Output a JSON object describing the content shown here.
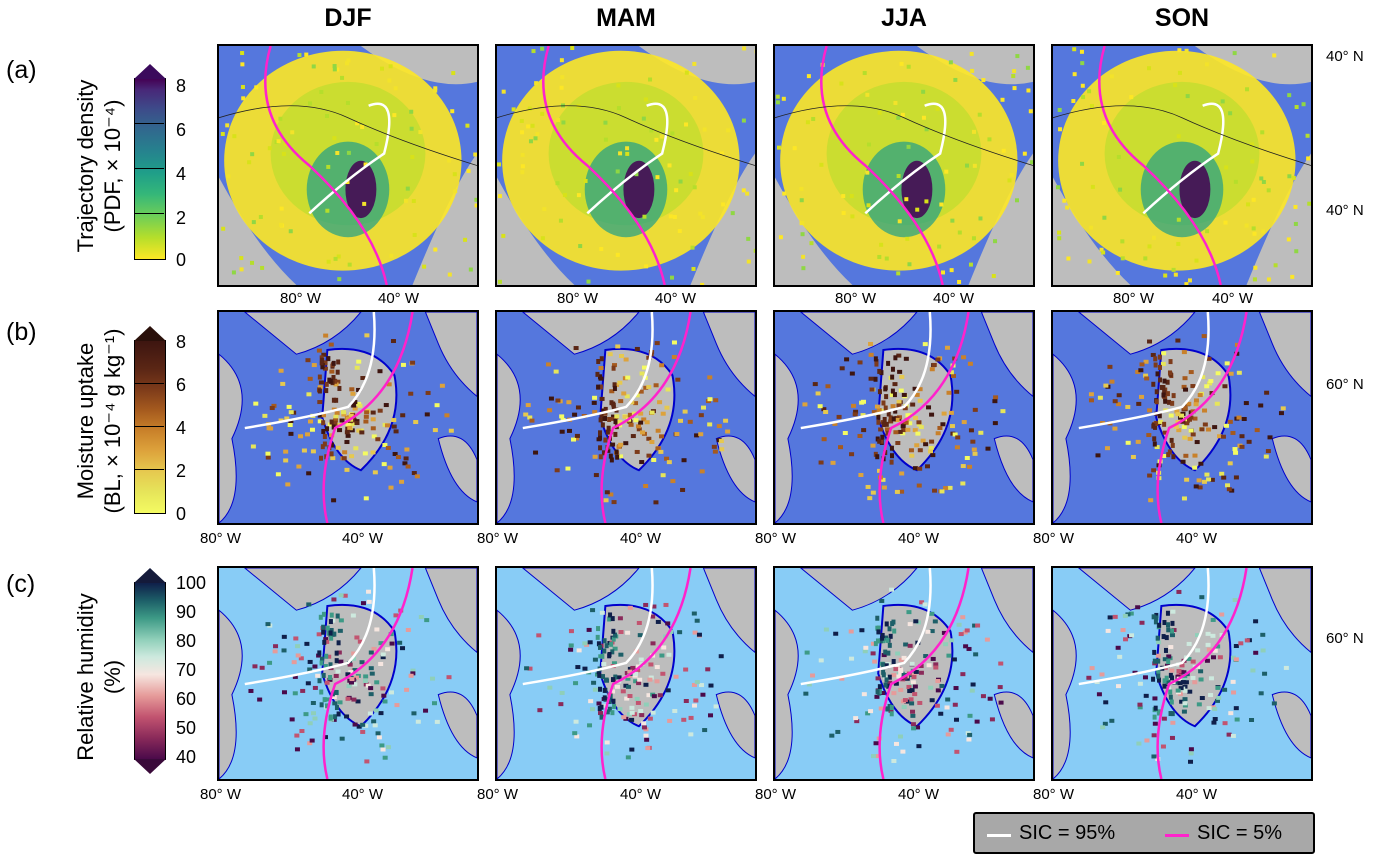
{
  "seasons": [
    "DJF",
    "MAM",
    "JJA",
    "SON"
  ],
  "rows": [
    {
      "label": "(a)",
      "title_line1": "Trajectory density",
      "title_line2": "(PDF, × 10⁻⁴)",
      "ticks": [
        "8",
        "6",
        "4",
        "2",
        "0"
      ]
    },
    {
      "label": "(b)",
      "title_line1": "Moisture uptake",
      "title_line2": "(BL, × 10⁻⁴ g kg⁻¹)",
      "ticks": [
        "8",
        "6",
        "4",
        "2",
        "0"
      ]
    },
    {
      "label": "(c)",
      "title_line1": "Relative humidity",
      "title_line2": "(%)",
      "ticks": [
        "100",
        "90",
        "80",
        "70",
        "60",
        "50",
        "40"
      ]
    }
  ],
  "lon_labels": {
    "row_a": [
      "80° W",
      "40° W"
    ],
    "row_bc": [
      "80° W",
      "40° W"
    ]
  },
  "lat_labels": {
    "row_a_top": "40° N",
    "row_a_mid": "40° N",
    "row_b": "60° N",
    "row_c": "60° N"
  },
  "legend": {
    "white_label": "SIC = 95%",
    "magenta_label": "SIC = 5%"
  },
  "colors": {
    "ocean_a": "#5577dd",
    "ocean_b": "#5577dd",
    "ocean_c": "#88ccf6",
    "land": "#bdbdbd",
    "sic95": "#ffffff",
    "sic5": "#ff22cc",
    "coast": "#0000cc",
    "legend_bg": "#a8a8a8"
  }
}
